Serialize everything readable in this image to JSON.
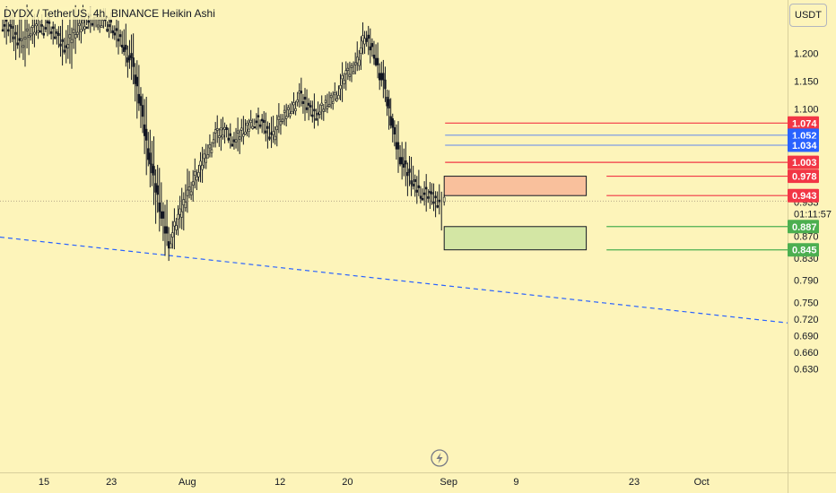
{
  "header": {
    "title": "DYDX / TetherUS, 4h, BINANCE  Heikin Ashi",
    "currency": "USDT"
  },
  "countdown": "01:11:57",
  "colors": {
    "background": "#fdf4ba",
    "red": "#f23645",
    "blue": "#2962ff",
    "green": "#4caf50",
    "orange_zone": "#f9c09c",
    "green_zone": "#d3e6a4",
    "trendline": "#2962ff",
    "candle": "#131722"
  },
  "chart_data": {
    "type": "candlestick",
    "title": "DYDX / TetherUS, 4h, BINANCE  Heikin Ashi",
    "xlabel": "",
    "ylabel": "",
    "ylim": [
      0.62,
      1.265
    ],
    "y_ticks": [
      "1.200",
      "1.150",
      "1.100",
      "0.870",
      "0.830",
      "0.790",
      "0.750",
      "0.720",
      "0.690",
      "0.660",
      "0.630"
    ],
    "x_ticks": [
      "15",
      "23",
      "Aug",
      "12",
      "20",
      "Sep",
      "9",
      "23",
      "Oct"
    ],
    "last_price": {
      "label": "0.933",
      "value": 0.933
    },
    "series": [
      {
        "type": "heikin-ashi",
        "x_start": "Jul 10",
        "x_end": "Aug 31",
        "close": [
          1.255,
          1.24,
          1.22,
          1.235,
          1.25,
          1.245,
          1.23,
          1.21,
          1.24,
          1.26,
          1.255,
          1.26,
          1.24,
          1.22,
          1.18,
          1.1,
          1.0,
          0.92,
          0.86,
          0.9,
          0.95,
          0.98,
          1.02,
          1.05,
          1.06,
          1.04,
          1.06,
          1.08,
          1.07,
          1.05,
          1.08,
          1.1,
          1.12,
          1.1,
          1.09,
          1.11,
          1.13,
          1.16,
          1.18,
          1.23,
          1.2,
          1.14,
          1.06,
          1.0,
          0.97,
          0.95,
          0.94,
          0.93
        ]
      }
    ],
    "levels": [
      {
        "label": "1.074",
        "value": 1.074,
        "color": "red"
      },
      {
        "label": "1.052",
        "value": 1.052,
        "color": "blue"
      },
      {
        "label": "1.034",
        "value": 1.034,
        "color": "blue"
      },
      {
        "label": "1.003",
        "value": 1.003,
        "color": "red"
      },
      {
        "label": "0.978",
        "value": 0.978,
        "color": "red"
      },
      {
        "label": "0.943",
        "value": 0.943,
        "color": "red"
      },
      {
        "label": "0.887",
        "value": 0.887,
        "color": "green"
      },
      {
        "label": "0.845",
        "value": 0.845,
        "color": "green"
      }
    ],
    "zones": [
      {
        "top": 0.978,
        "bottom": 0.943,
        "color": "orange_zone",
        "x_from": "Sep 1",
        "x_to": "Sep 17"
      },
      {
        "top": 0.887,
        "bottom": 0.845,
        "color": "green_zone",
        "x_from": "Sep 1",
        "x_to": "Sep 17"
      }
    ],
    "trendline": {
      "start_value": 0.868,
      "end_value": 0.713,
      "style": "dashed"
    }
  }
}
